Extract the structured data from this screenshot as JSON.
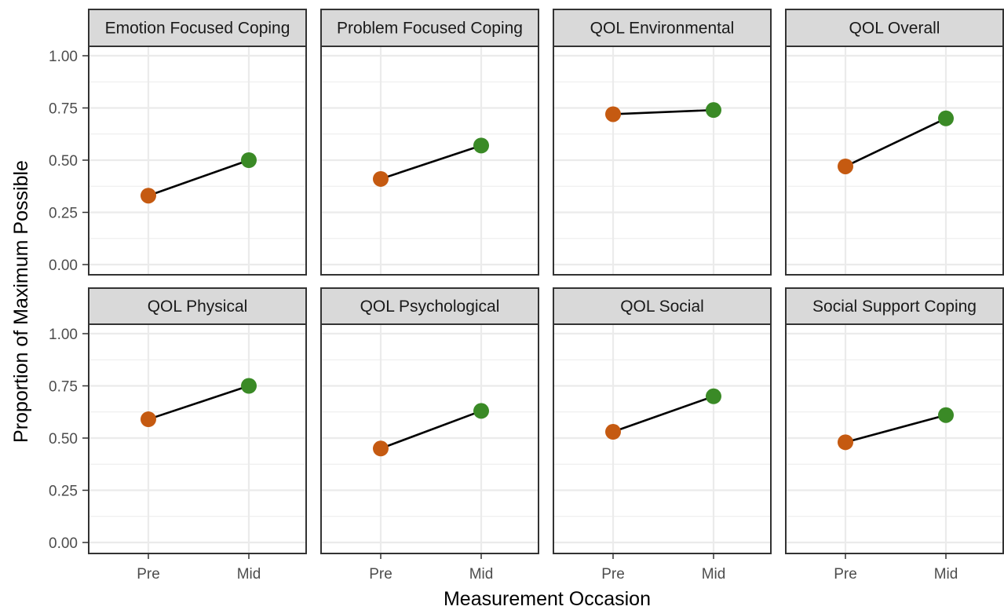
{
  "chart_data": {
    "type": "line",
    "facet_layout": "2 rows x 4 columns",
    "xlabel": "Measurement Occasion",
    "ylabel": "Proportion of Maximum Possible",
    "categories": [
      "Pre",
      "Mid"
    ],
    "ylim": [
      -0.03,
      1.05
    ],
    "yticks": [
      "0.00",
      "0.25",
      "0.50",
      "0.75",
      "1.00"
    ],
    "grid": true,
    "legend": "none",
    "colors": {
      "Pre": "#c55a11",
      "Mid": "#3a8a26",
      "line": "#000000",
      "strip_bg": "#d9d9d9",
      "grid": "#ebebeb"
    },
    "panels": [
      {
        "title": "Emotion Focused Coping",
        "values": [
          0.33,
          0.5
        ]
      },
      {
        "title": "Problem Focused Coping",
        "values": [
          0.41,
          0.57
        ]
      },
      {
        "title": "QOL Environmental",
        "values": [
          0.72,
          0.74
        ]
      },
      {
        "title": "QOL Overall",
        "values": [
          0.47,
          0.7
        ]
      },
      {
        "title": "QOL Physical",
        "values": [
          0.59,
          0.75
        ]
      },
      {
        "title": "QOL Psychological",
        "values": [
          0.45,
          0.63
        ]
      },
      {
        "title": "QOL Social",
        "values": [
          0.53,
          0.7
        ]
      },
      {
        "title": "Social Support Coping",
        "values": [
          0.48,
          0.61
        ]
      }
    ]
  }
}
